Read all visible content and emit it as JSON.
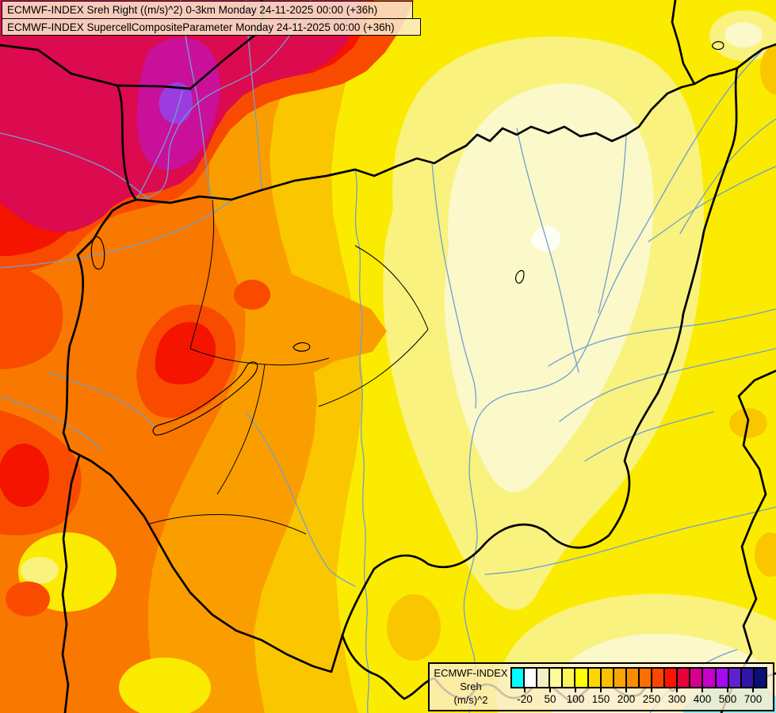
{
  "header": {
    "line1": "ECMWF-INDEX Sreh Right ((m/s)^2) 0-3km Monday 24-11-2025 00:00 (+36h)",
    "line2": "ECMWF-INDEX SupercellCompositeParameter Monday 24-11-2025 00:00 (+36h)"
  },
  "legend": {
    "title_lines": [
      "ECMWF-INDEX",
      "Sreh",
      "(m/s)^2"
    ],
    "scale": {
      "colors": [
        "#00FFFF",
        "#FFFFFF",
        "#F2EFC4",
        "#FCFA9A",
        "#FCF55A",
        "#FFFF00",
        "#FDD700",
        "#FCBE00",
        "#FCA400",
        "#FB8C00",
        "#FB6E00",
        "#FB4600",
        "#FB1400",
        "#E8003C",
        "#D2008C",
        "#C800C8",
        "#A50AF0",
        "#641ED2",
        "#3214AA",
        "#0A1078"
      ],
      "tick_labels": [
        "-20",
        "50",
        "100",
        "150",
        "200",
        "250",
        "300",
        "400",
        "500",
        "700"
      ]
    }
  },
  "palette": {
    "yellow": "#FBEB00",
    "pale_yellow": "#F9F27E",
    "cream": "#FBF8CA",
    "white": "#FEFEF4",
    "gold": "#FAC600",
    "amber": "#FA9E00",
    "orange": "#F97800",
    "red_orange": "#F94B00",
    "red": "#F51400",
    "crimson": "#DC0A4E",
    "magenta": "#C9109B",
    "purple": "#9B3BE0",
    "cyan": "#8CE8EF",
    "river": "#6FA0CF",
    "border": "#000000"
  }
}
